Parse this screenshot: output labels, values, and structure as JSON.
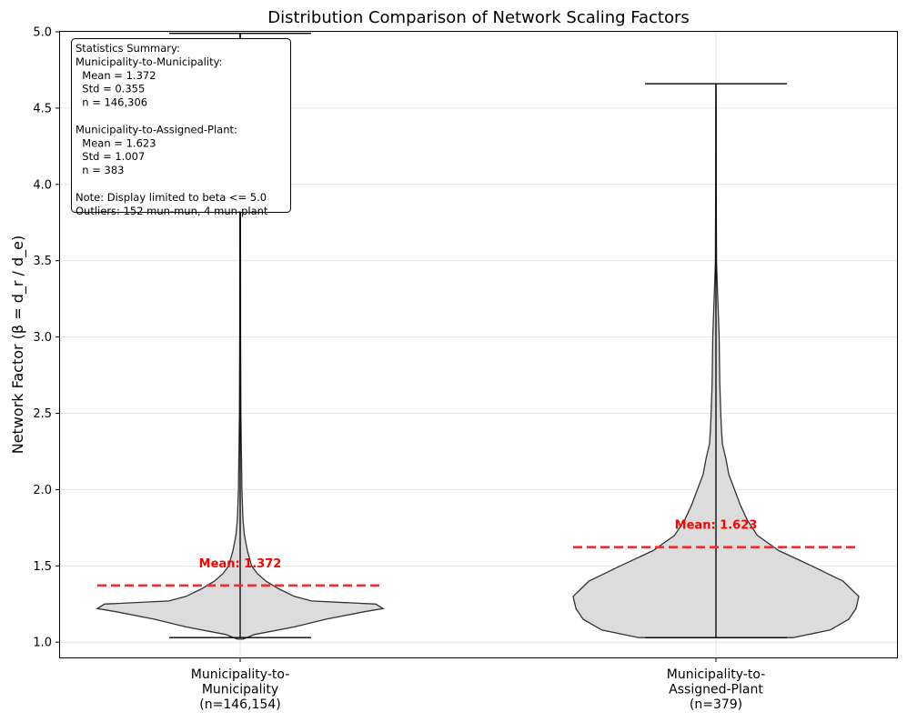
{
  "chart_data": {
    "type": "violin",
    "title": "Distribution Comparison of Network Scaling Factors",
    "ylabel": "Network Factor (β = d_r / d_e)",
    "ylim": [
      0.9,
      5.0
    ],
    "yticks": [
      "1.0",
      "1.5",
      "2.0",
      "2.5",
      "3.0",
      "3.5",
      "4.0",
      "4.5",
      "5.0"
    ],
    "grid": true,
    "categories": [
      [
        "Municipality-to-",
        "Municipality",
        "(n=146,154)"
      ],
      [
        "Municipality-to-",
        "Assigned-Plant",
        "(n=379)"
      ]
    ],
    "violins": [
      {
        "min": 1.03,
        "max": 4.99,
        "mean": 1.372,
        "mean_label": "Mean: 1.372",
        "profile": [
          [
            1.02,
            0.02
          ],
          [
            1.05,
            0.1
          ],
          [
            1.1,
            0.38
          ],
          [
            1.15,
            0.6
          ],
          [
            1.2,
            0.87
          ],
          [
            1.22,
            1.0
          ],
          [
            1.25,
            0.95
          ],
          [
            1.27,
            0.5
          ],
          [
            1.3,
            0.38
          ],
          [
            1.35,
            0.27
          ],
          [
            1.4,
            0.18
          ],
          [
            1.45,
            0.12
          ],
          [
            1.5,
            0.08
          ],
          [
            1.6,
            0.05
          ],
          [
            1.7,
            0.03
          ],
          [
            1.8,
            0.02
          ],
          [
            2.0,
            0.012
          ],
          [
            2.5,
            0.005
          ],
          [
            3.0,
            0.003
          ],
          [
            4.0,
            0.002
          ],
          [
            4.99,
            0.001
          ]
        ]
      },
      {
        "min": 1.03,
        "max": 4.66,
        "mean": 1.623,
        "mean_label": "Mean: 1.623",
        "profile": [
          [
            1.03,
            0.54
          ],
          [
            1.08,
            0.8
          ],
          [
            1.15,
            0.93
          ],
          [
            1.22,
            0.98
          ],
          [
            1.3,
            1.0
          ],
          [
            1.4,
            0.89
          ],
          [
            1.5,
            0.67
          ],
          [
            1.6,
            0.44
          ],
          [
            1.7,
            0.29
          ],
          [
            1.8,
            0.22
          ],
          [
            1.9,
            0.17
          ],
          [
            2.0,
            0.13
          ],
          [
            2.1,
            0.09
          ],
          [
            2.2,
            0.07
          ],
          [
            2.3,
            0.045
          ],
          [
            2.4,
            0.038
          ],
          [
            2.5,
            0.034
          ],
          [
            2.7,
            0.027
          ],
          [
            3.0,
            0.022
          ],
          [
            3.3,
            0.011
          ],
          [
            3.5,
            0.004
          ],
          [
            4.0,
            0.002
          ],
          [
            4.5,
            0.001
          ],
          [
            4.66,
            0.0005
          ]
        ]
      }
    ],
    "stats_box": [
      "Statistics Summary:",
      "Municipality-to-Municipality:",
      "  Mean = 1.372",
      "  Std = 0.355",
      "  n = 146,306",
      "",
      "Municipality-to-Assigned-Plant:",
      "  Mean = 1.623",
      "  Std = 1.007",
      "  n = 383",
      "",
      "Note: Display limited to beta <= 5.0",
      "Outliers: 152 mun-mun, 4 mun-plant"
    ],
    "colors": {
      "violin_fill": "#dcdcdc",
      "violin_edge": "#333333",
      "mean_line": "#f03030",
      "mean_text": "#ff0000",
      "grid": "#e6e6e6"
    }
  }
}
